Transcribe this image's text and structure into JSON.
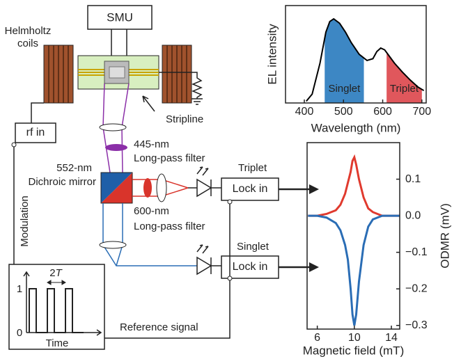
{
  "diagram": {
    "smu": "SMU",
    "helmholtz": [
      "Helmholtz",
      "coils"
    ],
    "stripline": "Stripline",
    "rf_in": "rf in",
    "filter_445": [
      "445-nm",
      "Long-pass filter"
    ],
    "mirror": [
      "552-nm",
      "Dichroic mirror"
    ],
    "filter_600": [
      "600-nm",
      "Long-pass filter"
    ],
    "lock_in_top": "Lock in",
    "lock_in_bottom": "Lock in",
    "modulation": "Modulation",
    "reference": "Reference signal",
    "inset": {
      "period": "2",
      "period_symbol": "T",
      "high": "1",
      "low": "0",
      "xlabel": "Time"
    }
  },
  "chart_data": [
    {
      "type": "line",
      "ylabel": "EL intensity",
      "xlabel": "Wavelength (nm)",
      "x": [
        405,
        420,
        440,
        455,
        465,
        475,
        490,
        505,
        520,
        540,
        560,
        575,
        585,
        595,
        605,
        615,
        630,
        650,
        670,
        690,
        705
      ],
      "series": [
        {
          "color": "#000000",
          "values": [
            0.02,
            0.1,
            0.45,
            0.8,
            0.92,
            0.95,
            0.9,
            0.8,
            0.68,
            0.55,
            0.48,
            0.5,
            0.58,
            0.62,
            0.6,
            0.54,
            0.45,
            0.35,
            0.26,
            0.18,
            0.14
          ]
        }
      ],
      "bands": [
        {
          "label": "Singlet",
          "range": [
            452,
            552
          ],
          "color": "#3d87c4"
        },
        {
          "label": "Triplet",
          "range": [
            610,
            700
          ],
          "color": "#e0575c"
        }
      ],
      "xlim": [
        352,
        711
      ],
      "xticks": [
        400,
        500,
        600,
        700
      ],
      "ylim": [
        0,
        1.1
      ]
    },
    {
      "type": "line",
      "xlabel": "Magnetic field (mT)",
      "ylabel": "ODMR (mV)",
      "x": [
        5,
        6,
        7,
        8,
        8.5,
        9,
        9.3,
        9.6,
        9.8,
        10,
        10.2,
        10.5,
        11,
        11.5,
        12,
        13,
        14,
        14.9
      ],
      "series": [
        {
          "name": "Triplet",
          "color": "#e03a2e",
          "values": [
            0.0,
            0.0,
            0.005,
            0.015,
            0.03,
            0.06,
            0.09,
            0.12,
            0.15,
            0.16,
            0.14,
            0.1,
            0.05,
            0.02,
            0.01,
            0.0,
            0.0,
            0.0
          ]
        },
        {
          "name": "Singlet",
          "color": "#2a6db5",
          "values": [
            0.0,
            0.0,
            -0.005,
            -0.02,
            -0.04,
            -0.08,
            -0.12,
            -0.2,
            -0.27,
            -0.3,
            -0.27,
            -0.18,
            -0.08,
            -0.03,
            -0.01,
            0.0,
            0.0,
            0.0
          ]
        }
      ],
      "xlim": [
        4.9,
        14.9
      ],
      "xticks": [
        6,
        10,
        14
      ],
      "ylim": [
        -0.31,
        0.2
      ],
      "yticks": [
        0.1,
        {
          "value": 0,
          "label": "0.0"
        },
        {
          "value": -0.1,
          "label": "−0.1"
        },
        {
          "value": -0.2,
          "label": "−0.2"
        },
        {
          "value": -0.3,
          "label": "−0.3"
        }
      ]
    }
  ]
}
